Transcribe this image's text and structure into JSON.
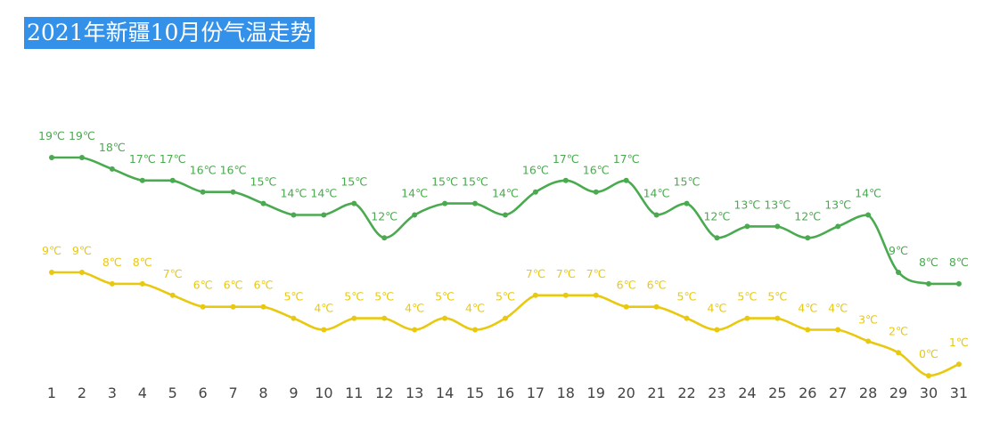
{
  "title": "2021年新疆10月份气温走势",
  "colors": {
    "title_bg": "#3391ea",
    "high": "#4aaa4f",
    "low": "#e9c90f",
    "axis_text": "#444444"
  },
  "chart_data": {
    "type": "line",
    "title": "2021年新疆10月份气温走势",
    "xlabel": "",
    "ylabel": "",
    "x": [
      1,
      2,
      3,
      4,
      5,
      6,
      7,
      8,
      9,
      10,
      11,
      12,
      13,
      14,
      15,
      16,
      17,
      18,
      19,
      20,
      21,
      22,
      23,
      24,
      25,
      26,
      27,
      28,
      29,
      30,
      31
    ],
    "unit": "℃",
    "grid": false,
    "legend": "none",
    "series": [
      {
        "color": "#4aaa4f",
        "values": [
          19,
          19,
          18,
          17,
          17,
          16,
          16,
          15,
          14,
          14,
          15,
          12,
          14,
          15,
          15,
          14,
          16,
          17,
          16,
          17,
          14,
          15,
          12,
          13,
          13,
          12,
          13,
          14,
          9,
          8,
          8
        ]
      },
      {
        "color": "#e9c90f",
        "values": [
          9,
          9,
          8,
          8,
          7,
          6,
          6,
          6,
          5,
          4,
          5,
          5,
          4,
          5,
          4,
          5,
          7,
          7,
          7,
          6,
          6,
          5,
          4,
          5,
          5,
          4,
          4,
          3,
          2,
          0,
          1
        ]
      }
    ]
  }
}
